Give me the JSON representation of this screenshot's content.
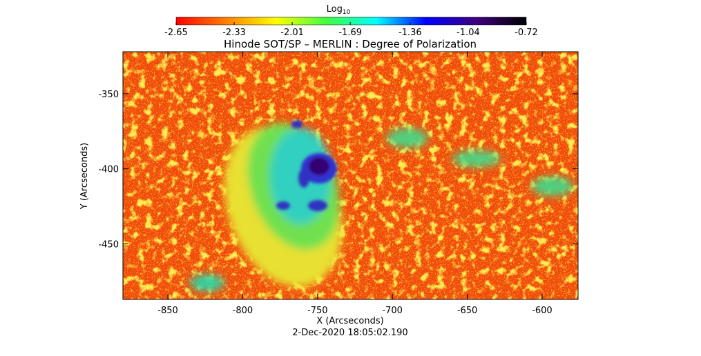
{
  "chart_data": {
    "type": "heatmap",
    "title": "Hinode SOT/SP – MERLIN : Degree of Polarization",
    "xlabel": "X (Arcseconds)",
    "ylabel": "Y (Arcseconds)",
    "date": "2-Dec-2020 18:05:02.190",
    "xlim": [
      -880,
      -576
    ],
    "xticks": [
      -850,
      -800,
      -750,
      -700,
      -650,
      -600
    ],
    "ylim": [
      -487,
      -322
    ],
    "yticks": [
      -450,
      -400,
      -350
    ],
    "colorbar": {
      "label": "Log",
      "label_sub": "10",
      "lim": [
        -2.65,
        -0.72
      ],
      "ticks": [
        -2.65,
        -2.33,
        -2.01,
        -1.69,
        -1.36,
        -1.04,
        -0.72
      ],
      "colors": [
        "#ff0000",
        "#ff8000",
        "#ffff00",
        "#40ff40",
        "#00ffff",
        "#0000ff",
        "#400080",
        "#000000"
      ]
    }
  }
}
